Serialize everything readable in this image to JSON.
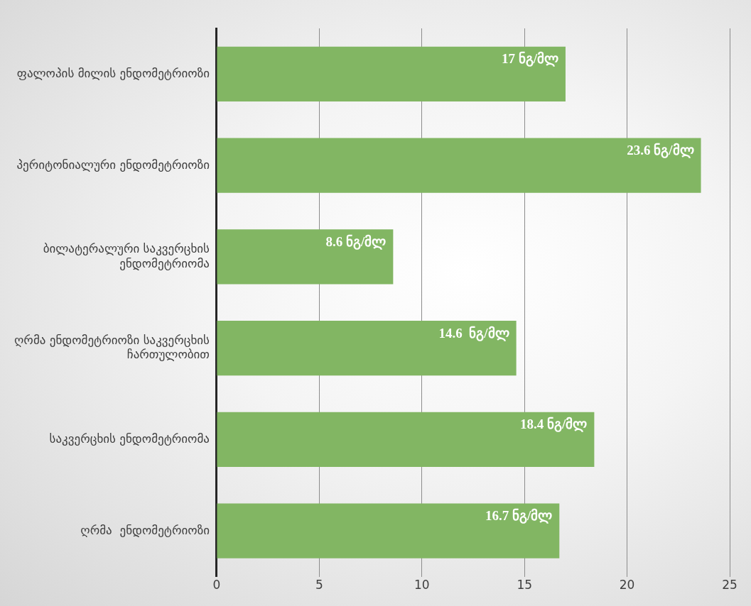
{
  "chart_data": {
    "type": "bar",
    "orientation": "horizontal",
    "categories": [
      "ფალოპის მილის ენდომეტრიოზი",
      "პერიტონიალური ენდომეტრიოზი",
      "ბილატერალური საკვერცხის ენდომეტრიომა",
      "ღრმა ენდომეტრიოზი საკვერცხის ჩართულობით",
      "საკვერცხის ენდომეტრიომა",
      "ღრმა  ენდომეტრიოზი"
    ],
    "values": [
      17,
      23.6,
      8.6,
      14.6,
      18.4,
      16.7
    ],
    "value_labels": [
      "17 ნგ/მლ",
      "23.6 ნგ/მლ",
      "8.6 ნგ/მლ",
      "14.6  ნგ/მლ",
      "18.4 ნგ/მლ",
      "16.7 ნგ/მლ"
    ],
    "color": "#82b663",
    "xlim": [
      0,
      25
    ],
    "xticks": [
      0,
      5,
      10,
      15,
      20,
      25
    ],
    "grid": "x",
    "legend": false
  }
}
